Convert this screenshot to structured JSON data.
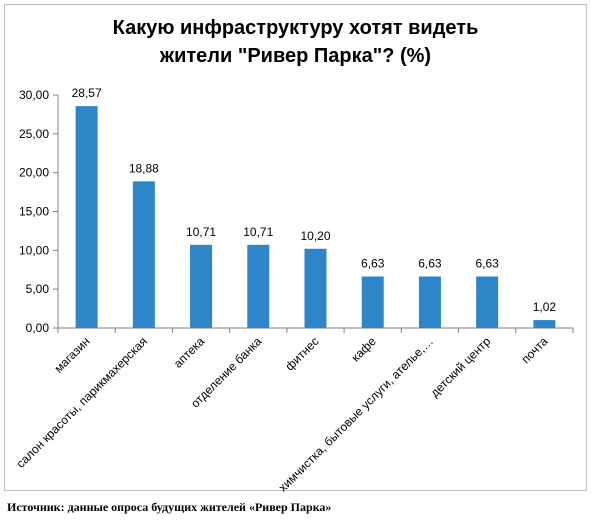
{
  "chart_data": {
    "type": "bar",
    "title_lines": [
      "Какую инфраструктуру хотят видеть",
      "жители \"Ривер Парка\"? (%)"
    ],
    "categories": [
      "магазин",
      "салон красоты, парикмахерская",
      "аптека",
      "отделение банка",
      "фитнес",
      "кафе",
      "химчистка, бытовые услуги, ателье,…",
      "детский центр",
      "почта"
    ],
    "values": [
      28.57,
      18.88,
      10.71,
      10.71,
      10.2,
      6.63,
      6.63,
      6.63,
      1.02
    ],
    "value_labels": [
      "28,57",
      "18,88",
      "10,71",
      "10,71",
      "10,20",
      "6,63",
      "6,63",
      "6,63",
      "1,02"
    ],
    "y_ticks": [
      "0,00",
      "5,00",
      "10,00",
      "15,00",
      "20,00",
      "25,00",
      "30,00"
    ],
    "ylim": [
      0,
      30
    ],
    "grid": false,
    "legend": "none",
    "bar_color": "#2E86C8"
  },
  "source_text": "Источник: данные опроса будущих жителей «Ривер Парка»"
}
